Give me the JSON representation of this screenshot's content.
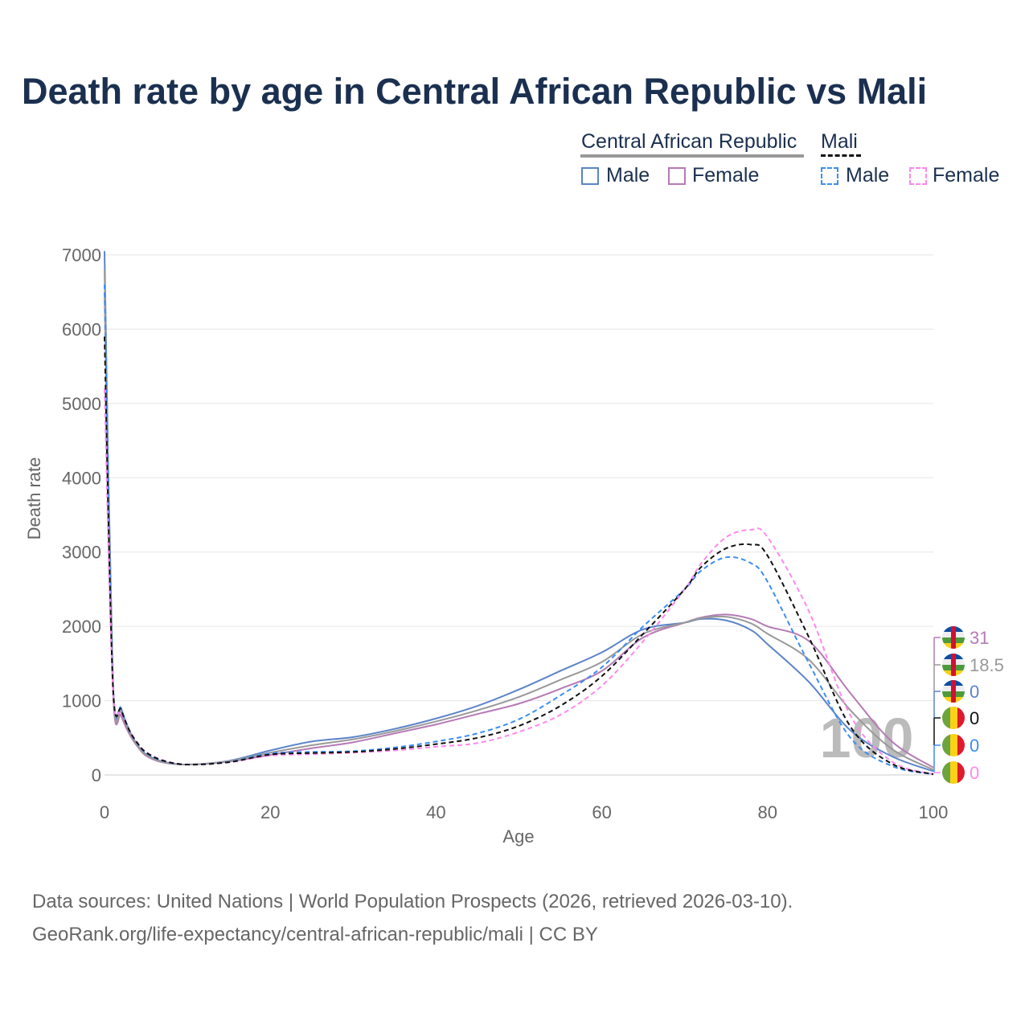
{
  "title": "Death rate by age in Central African Republic vs Mali",
  "legend": {
    "group1": "Central African Republic",
    "group2": "Mali",
    "male": "Male",
    "female": "Female"
  },
  "colors": {
    "car_male": "#5b84c9",
    "car_female": "#b57ab5",
    "car_total": "#999999",
    "mali_male": "#3b8ef0",
    "mali_female": "#ff88ee",
    "mali_total": "#111111"
  },
  "footer": {
    "line1": "Data sources: United Nations | World Population Prospects (2026, retrieved 2026-03-10).",
    "line2": "GeoRank.org/life-expectancy/central-african-republic/mali | CC BY"
  },
  "watermark": "100",
  "end_labels": [
    "31",
    "18.5",
    "0",
    "0",
    "0",
    "0"
  ],
  "chart_data": {
    "type": "line",
    "xlabel": "Age",
    "ylabel": "Death rate",
    "xlim": [
      0,
      100
    ],
    "ylim": [
      0,
      7000
    ],
    "xticks": [
      "0",
      "20",
      "40",
      "60",
      "80",
      "100"
    ],
    "yticks": [
      "0",
      "1000",
      "2000",
      "3000",
      "4000",
      "5000",
      "6000",
      "7000"
    ],
    "x": [
      0,
      1,
      2,
      3,
      4,
      5,
      7,
      10,
      15,
      20,
      25,
      30,
      35,
      40,
      45,
      50,
      55,
      60,
      65,
      70,
      72,
      75,
      78,
      80,
      85,
      90,
      95,
      100
    ],
    "series": [
      {
        "name": "Central African Republic Male",
        "color": "#5b84c9",
        "dash": false,
        "values": [
          7050,
          1300,
          900,
          600,
          400,
          280,
          180,
          140,
          190,
          330,
          450,
          510,
          620,
          760,
          930,
          1150,
          1400,
          1650,
          1960,
          2050,
          2100,
          2080,
          1950,
          1760,
          1250,
          600,
          250,
          50
        ]
      },
      {
        "name": "Central African Republic Female",
        "color": "#b57ab5",
        "dash": false,
        "values": [
          6500,
          1200,
          800,
          550,
          380,
          260,
          170,
          140,
          180,
          270,
          360,
          440,
          560,
          680,
          820,
          960,
          1160,
          1400,
          1850,
          2050,
          2120,
          2160,
          2100,
          2000,
          1800,
          1100,
          450,
          100
        ]
      },
      {
        "name": "Central African Republic",
        "color": "#999999",
        "dash": false,
        "values": [
          6800,
          1250,
          850,
          580,
          390,
          270,
          175,
          140,
          185,
          300,
          400,
          480,
          590,
          720,
          870,
          1050,
          1280,
          1520,
          1900,
          2050,
          2110,
          2130,
          2040,
          1900,
          1550,
          870,
          350,
          70
        ]
      },
      {
        "name": "Mali Male",
        "color": "#3b8ef0",
        "dash": true,
        "values": [
          6600,
          1300,
          900,
          600,
          420,
          300,
          190,
          140,
          175,
          290,
          310,
          320,
          370,
          450,
          560,
          750,
          1070,
          1450,
          2000,
          2500,
          2750,
          2930,
          2850,
          2600,
          1500,
          500,
          120,
          10
        ]
      },
      {
        "name": "Mali Female",
        "color": "#ff88ee",
        "dash": true,
        "values": [
          5200,
          1200,
          850,
          600,
          430,
          310,
          200,
          140,
          170,
          260,
          280,
          300,
          330,
          380,
          430,
          580,
          810,
          1200,
          1800,
          2500,
          2850,
          3200,
          3300,
          3200,
          2200,
          800,
          180,
          10
        ]
      },
      {
        "name": "Mali",
        "color": "#111111",
        "dash": true,
        "values": [
          5900,
          1250,
          880,
          600,
          425,
          305,
          195,
          140,
          172,
          275,
          295,
          310,
          350,
          415,
          500,
          660,
          930,
          1330,
          1900,
          2500,
          2800,
          3050,
          3100,
          2950,
          1850,
          650,
          150,
          10
        ]
      }
    ]
  }
}
